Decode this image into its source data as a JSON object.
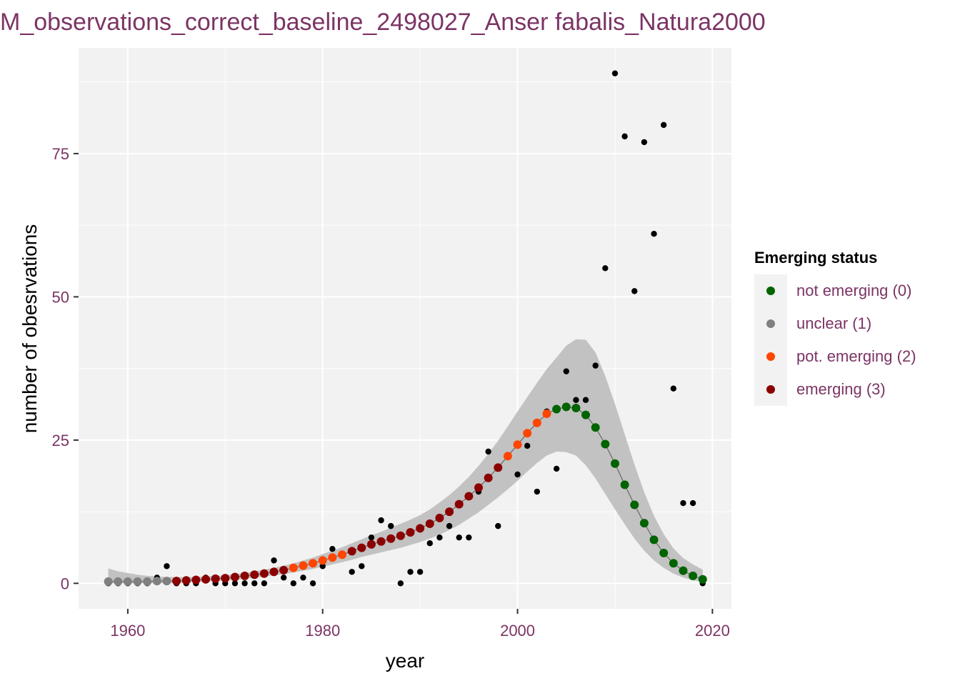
{
  "chart_data": {
    "type": "scatter",
    "title": "M_observations_correct_baseline_2498027_Anser fabalis_Natura2000",
    "xlabel": "year",
    "ylabel": "number of obesrvations",
    "xlim": [
      1954.95,
      2021.95
    ],
    "ylim": [
      -4.45,
      93.45
    ],
    "x_ticks": [
      1960,
      1980,
      2000,
      2020
    ],
    "x_tick_labels": [
      "1960",
      "1980",
      "2000",
      "2020"
    ],
    "y_ticks": [
      0,
      25,
      50,
      75
    ],
    "y_tick_labels": [
      "0",
      "25",
      "50",
      "75"
    ],
    "grid": true,
    "legend_position": "right",
    "colors": {
      "observed": "#000000",
      "panel_background": "#f2f2f2",
      "ribbon": "#c2c2c2",
      "fit_line": "#666666",
      "label_text": "#7b3464"
    },
    "legend": {
      "title": "Emerging status",
      "entries": [
        {
          "label": "not emerging (0)",
          "color": "#006400"
        },
        {
          "label": "unclear (1)",
          "color": "#808080"
        },
        {
          "label": "pot. emerging (2)",
          "color": "#ff4500"
        },
        {
          "label": "emerging (3)",
          "color": "#8b0000"
        }
      ]
    },
    "observed": {
      "x": [
        1958,
        1959,
        1960,
        1961,
        1962,
        1963,
        1964,
        1965,
        1966,
        1967,
        1968,
        1969,
        1970,
        1971,
        1972,
        1973,
        1974,
        1975,
        1976,
        1977,
        1978,
        1979,
        1980,
        1981,
        1982,
        1983,
        1984,
        1985,
        1986,
        1987,
        1988,
        1989,
        1990,
        1991,
        1992,
        1993,
        1994,
        1995,
        1996,
        1997,
        1998,
        1999,
        2000,
        2001,
        2002,
        2003,
        2004,
        2005,
        2006,
        2007,
        2008,
        2009,
        2010,
        2011,
        2012,
        2013,
        2014,
        2015,
        2016,
        2017,
        2018,
        2019
      ],
      "y": [
        0,
        0,
        0,
        0,
        0,
        1,
        3,
        0,
        0,
        0,
        1,
        0,
        0,
        0,
        0,
        0,
        0,
        4,
        1,
        0,
        1,
        0,
        3,
        6,
        5,
        2,
        3,
        8,
        11,
        10,
        0,
        2,
        2,
        7,
        8,
        10,
        8,
        8,
        16,
        23,
        10,
        22,
        19,
        24,
        16,
        30,
        20,
        37,
        32,
        32,
        38,
        55,
        89,
        78,
        51,
        77,
        61,
        80,
        34,
        14,
        14,
        0
      ]
    },
    "fit": {
      "x": [
        1958,
        1959,
        1960,
        1961,
        1962,
        1963,
        1964,
        1965,
        1966,
        1967,
        1968,
        1969,
        1970,
        1971,
        1972,
        1973,
        1974,
        1975,
        1976,
        1977,
        1978,
        1979,
        1980,
        1981,
        1982,
        1983,
        1984,
        1985,
        1986,
        1987,
        1988,
        1989,
        1990,
        1991,
        1992,
        1993,
        1994,
        1995,
        1996,
        1997,
        1998,
        1999,
        2000,
        2001,
        2002,
        2003,
        2004,
        2005,
        2006,
        2007,
        2008,
        2009,
        2010,
        2011,
        2012,
        2013,
        2014,
        2015,
        2016,
        2017,
        2018,
        2019
      ],
      "y": [
        0.3,
        0.3,
        0.3,
        0.3,
        0.3,
        0.4,
        0.4,
        0.4,
        0.5,
        0.6,
        0.7,
        0.8,
        0.9,
        1.1,
        1.3,
        1.5,
        1.7,
        2.0,
        2.3,
        2.7,
        3.1,
        3.5,
        4.0,
        4.5,
        5.0,
        5.6,
        6.2,
        6.8,
        7.3,
        7.8,
        8.3,
        8.9,
        9.6,
        10.4,
        11.4,
        12.5,
        13.8,
        15.2,
        16.7,
        18.4,
        20.2,
        22.2,
        24.2,
        26.2,
        28.0,
        29.6,
        30.4,
        30.8,
        30.6,
        29.4,
        27.2,
        24.3,
        20.9,
        17.2,
        13.7,
        10.5,
        7.6,
        5.3,
        3.5,
        2.2,
        1.3,
        0.7
      ],
      "lower": [
        0.0,
        0.0,
        0.0,
        0.0,
        0.0,
        0.0,
        0.0,
        0.0,
        0.1,
        0.2,
        0.3,
        0.4,
        0.5,
        0.6,
        0.8,
        1.0,
        1.2,
        1.4,
        1.6,
        1.9,
        2.2,
        2.5,
        2.9,
        3.3,
        3.7,
        4.1,
        4.6,
        5.0,
        5.4,
        5.8,
        6.2,
        6.7,
        7.2,
        7.8,
        8.5,
        9.3,
        10.2,
        11.3,
        12.4,
        13.7,
        15.0,
        16.4,
        17.9,
        19.5,
        21.0,
        22.3,
        23.0,
        22.9,
        22.3,
        20.6,
        18.3,
        15.6,
        12.9,
        10.3,
        7.8,
        5.7,
        4.0,
        2.7,
        1.7,
        1.0,
        0.5,
        0.3
      ],
      "upper": [
        2.6,
        2.1,
        1.8,
        1.5,
        1.3,
        1.2,
        1.1,
        1.1,
        1.1,
        1.1,
        1.2,
        1.3,
        1.4,
        1.6,
        1.8,
        2.1,
        2.4,
        2.7,
        3.1,
        3.5,
        4.0,
        4.5,
        5.1,
        5.7,
        6.3,
        7.0,
        7.7,
        8.4,
        9.0,
        9.7,
        10.4,
        11.1,
        11.9,
        12.9,
        14.1,
        15.4,
        16.9,
        18.6,
        20.5,
        22.6,
        24.9,
        27.4,
        30.0,
        32.5,
        35.0,
        37.4,
        39.4,
        41.5,
        42.6,
        42.5,
        40.3,
        36.2,
        31.3,
        26.0,
        20.7,
        15.9,
        11.8,
        8.6,
        6.1,
        4.4,
        3.3,
        2.4
      ],
      "status": [
        1,
        1,
        1,
        1,
        1,
        1,
        1,
        3,
        3,
        3,
        3,
        3,
        3,
        3,
        3,
        3,
        3,
        3,
        3,
        2,
        2,
        2,
        2,
        2,
        2,
        3,
        3,
        3,
        3,
        3,
        3,
        3,
        3,
        3,
        3,
        3,
        3,
        3,
        3,
        3,
        3,
        2,
        2,
        2,
        2,
        2,
        0,
        0,
        0,
        0,
        0,
        0,
        0,
        0,
        0,
        0,
        0,
        0,
        0,
        0,
        0,
        0
      ]
    }
  }
}
